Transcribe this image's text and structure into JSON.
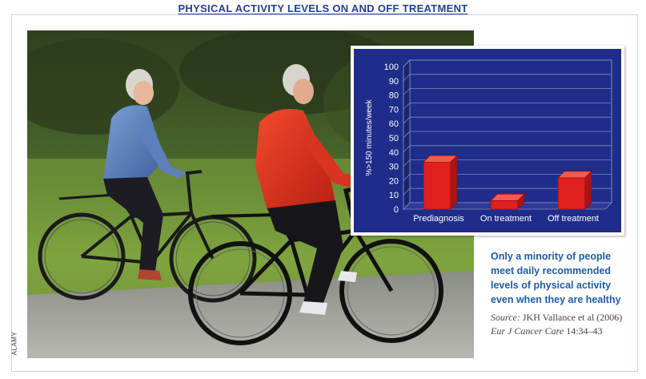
{
  "header": {
    "title": "PHYSICAL ACTIVITY LEVELS ON AND OFF TREATMENT"
  },
  "photo": {
    "credit": "ALAMY"
  },
  "chart_data": {
    "type": "bar",
    "categories": [
      "Prediagnosis",
      "On treatment",
      "Off treatment"
    ],
    "values": [
      33,
      6,
      22
    ],
    "ylabel": "%>150 minutes/week",
    "ylim": [
      0,
      100
    ],
    "yticks": [
      "0",
      "10",
      "20",
      "30",
      "40",
      "50",
      "60",
      "70",
      "80",
      "90",
      "100"
    ],
    "grid": true,
    "bar_style": "3d",
    "colors": {
      "background": "#1f2c8a",
      "bar": "#e0201f",
      "grid": "#7d8ab8",
      "text": "#ffffff"
    }
  },
  "caption": {
    "text": "Only a minority of people meet daily recommended levels of physical activity even when they are healthy",
    "source_label": "Source:",
    "source_authors": "JKH Vallance et al (2006)",
    "source_journal": "Eur J Cancer Care",
    "source_ref": "14:34–43"
  }
}
